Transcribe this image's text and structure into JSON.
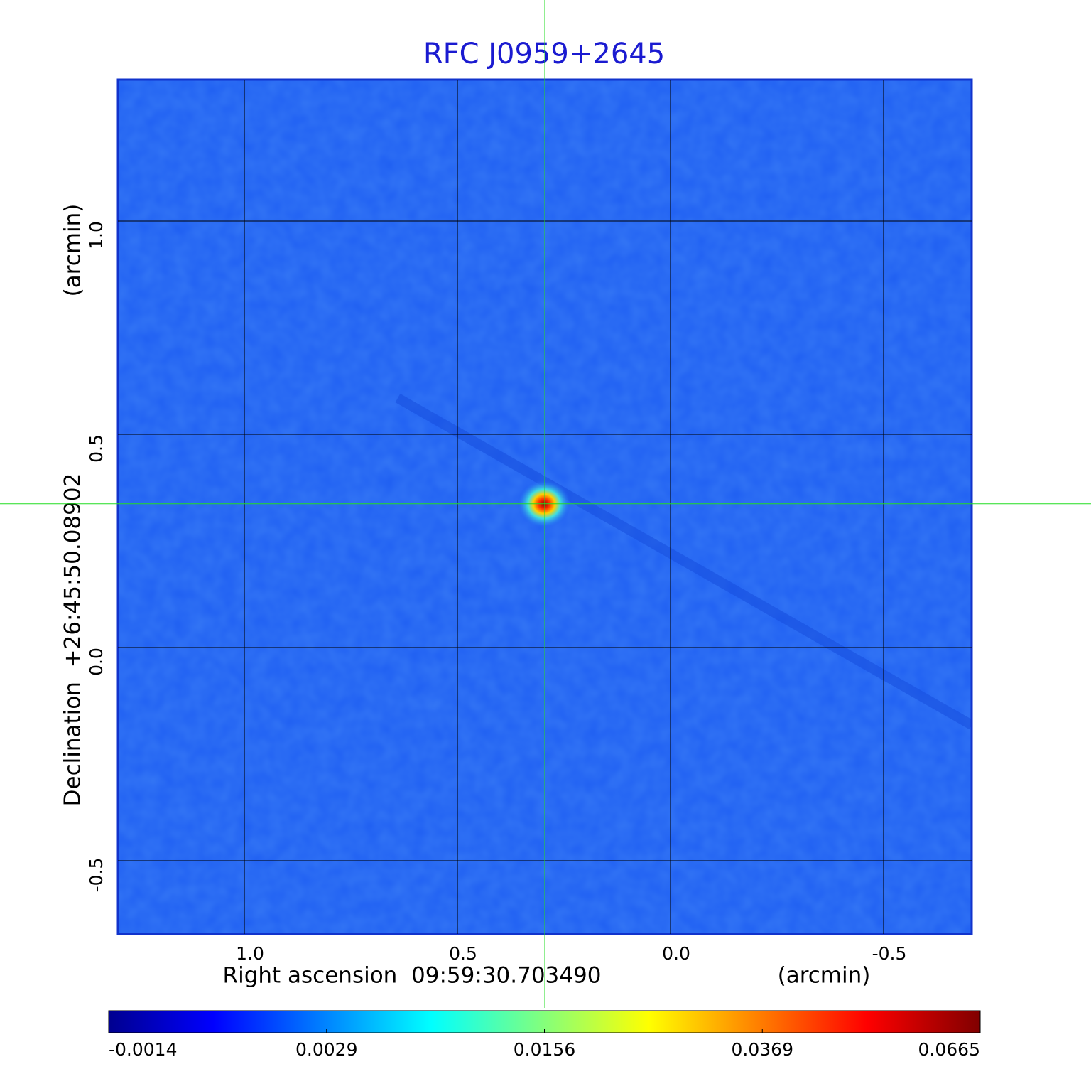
{
  "chart_data": {
    "type": "image",
    "title": "RFC J0959+2645",
    "xlabel": "Right ascension  09:59:30.703490",
    "xunit": "(arcmin)",
    "ylabel": "Declination  +26:45:50.08902",
    "yunit": "(arcmin)",
    "xlim": [
      1.2967,
      -0.7067
    ],
    "ylim": [
      -0.6717,
      1.3317
    ],
    "xticks": [
      {
        "value": 1,
        "label": "1.0"
      },
      0.5,
      {
        "value": 0,
        "label": "0.0"
      },
      -0.5
    ],
    "yticks": [
      {
        "value": 1,
        "label": "1.0"
      },
      0.5,
      {
        "value": 0,
        "label": "0.0"
      },
      -0.5
    ],
    "grid": true,
    "crosshair": {
      "x": 0.295,
      "y": 0.337
    },
    "colorbar_ticks": [
      -0.0014,
      0.0029,
      0.0156,
      0.0369,
      0.0665
    ]
  }
}
